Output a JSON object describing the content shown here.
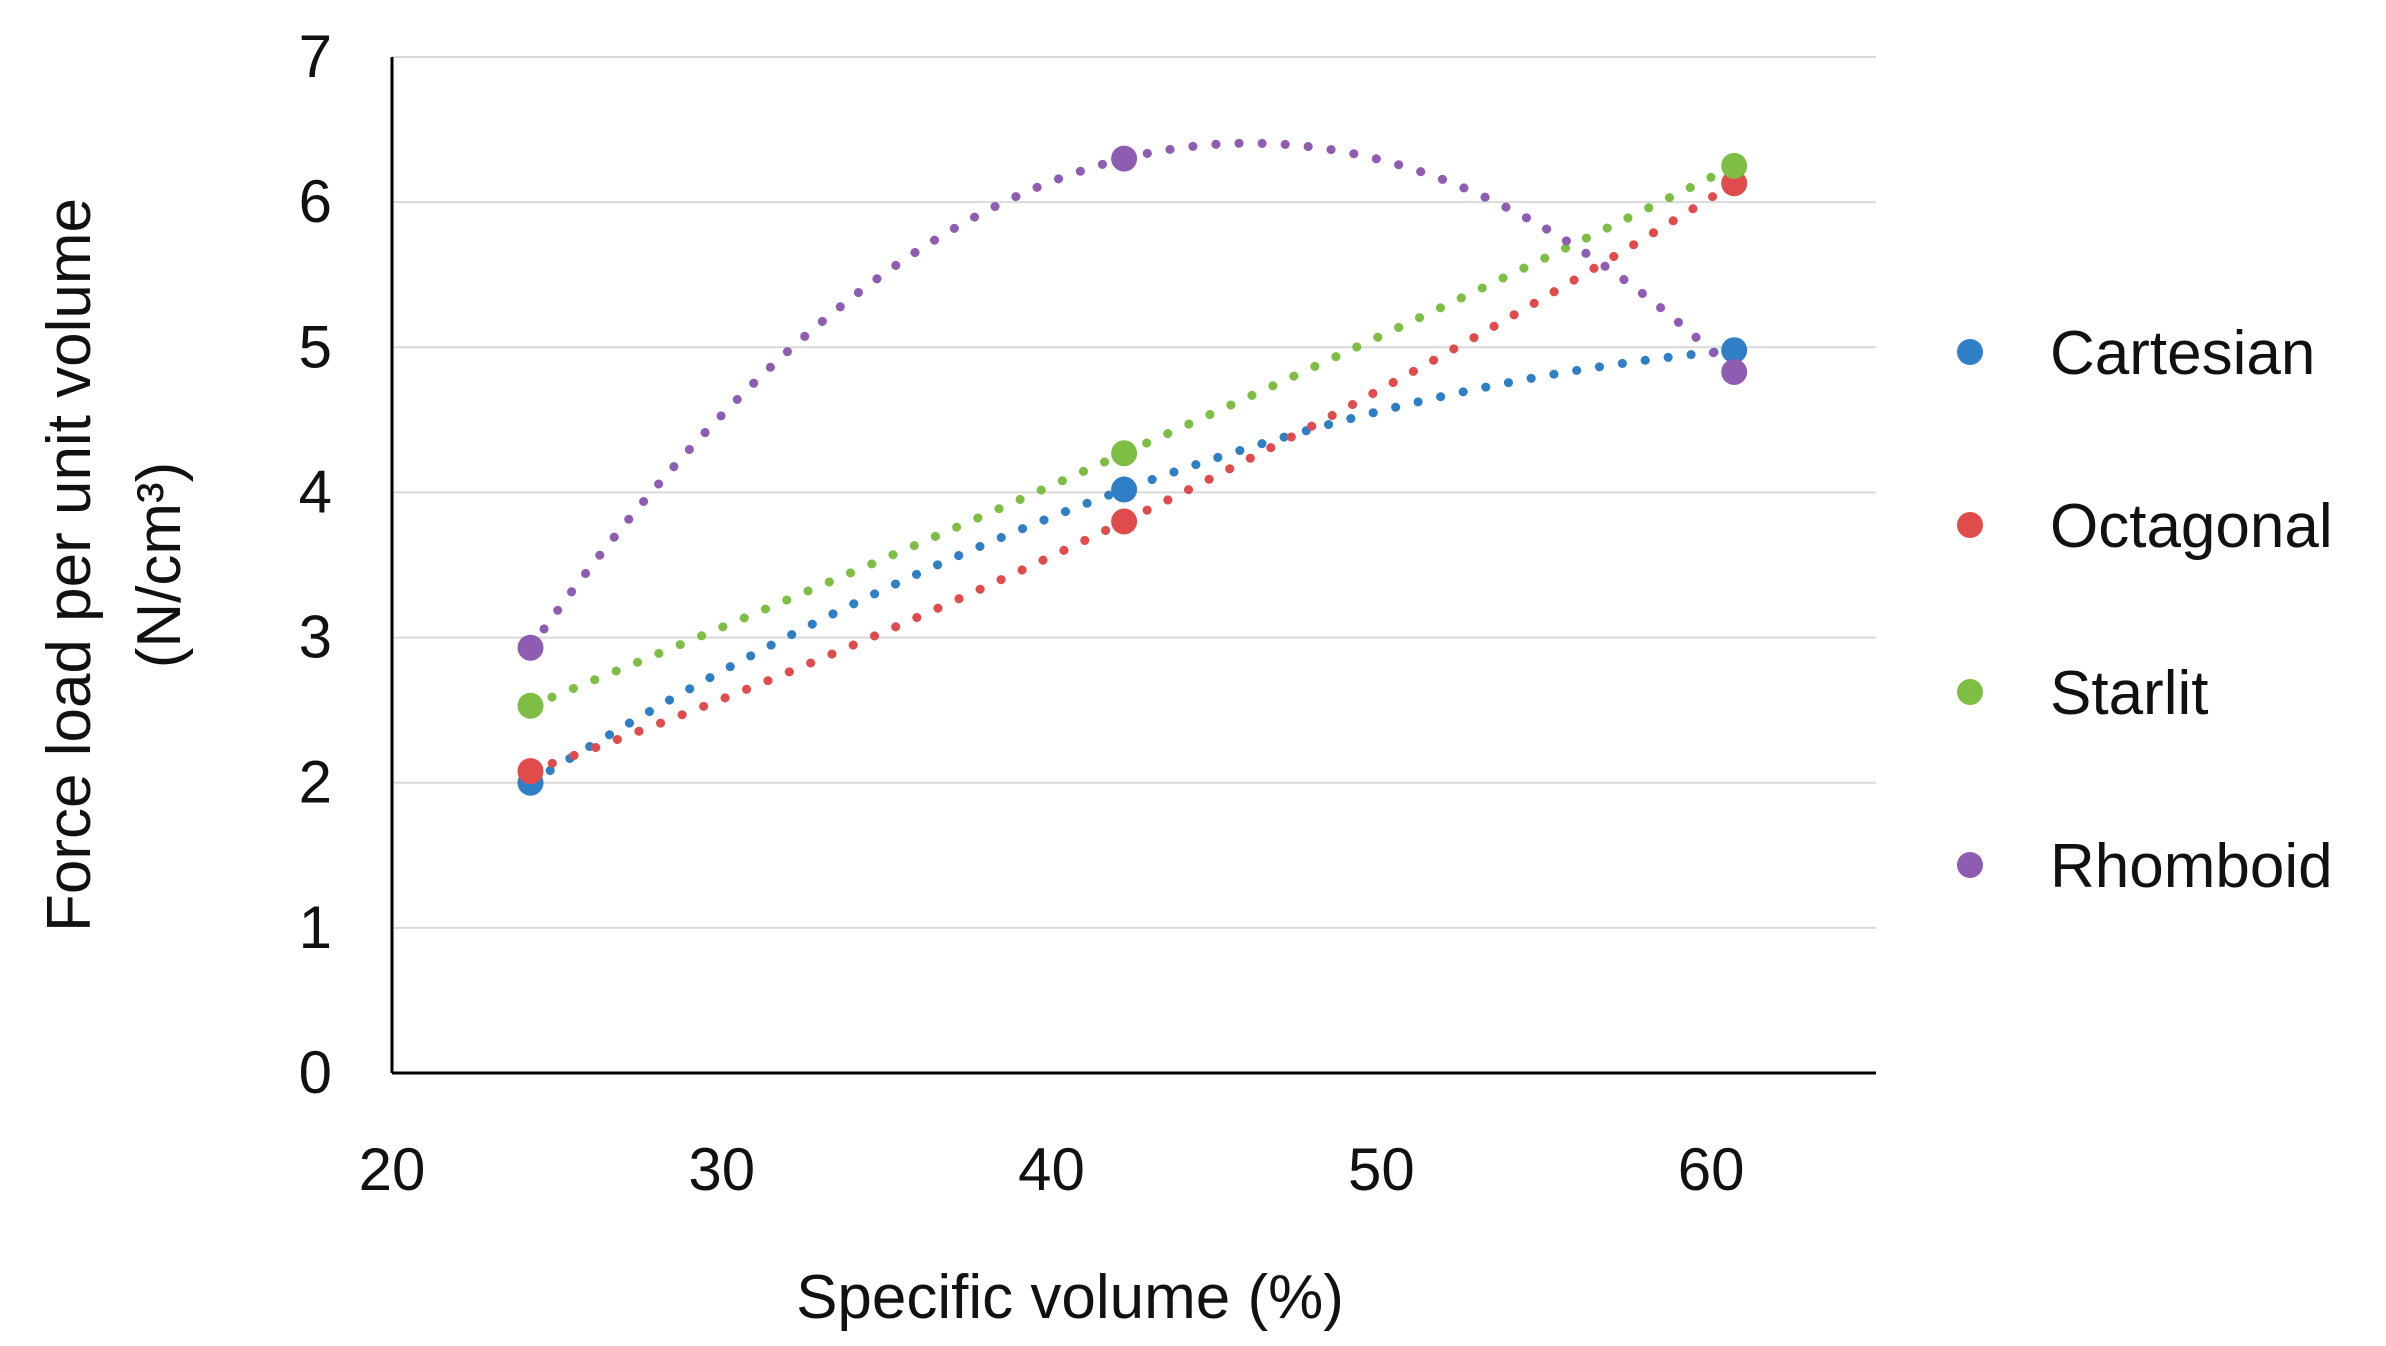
{
  "chart_data": {
    "type": "scatter",
    "title": "",
    "xlabel": "Specific volume (%)",
    "ylabel_line1": "Force load per unit volume",
    "ylabel_line2": "(N/cm³)",
    "xlim": [
      20,
      65
    ],
    "ylim": [
      0,
      7
    ],
    "xticks": [
      20,
      30,
      40,
      50,
      60
    ],
    "yticks": [
      0,
      1,
      2,
      3,
      4,
      5,
      6,
      7
    ],
    "grid": "horizontal",
    "legend_position": "right",
    "trendlines": "dotted polynomial (order 2)",
    "series": [
      {
        "name": "Cartesian",
        "color": "#2E7FC6",
        "x": [
          24.2,
          42.2,
          60.7
        ],
        "y": [
          2.0,
          4.02,
          4.98
        ]
      },
      {
        "name": "Octagonal",
        "color": "#E04B4B",
        "x": [
          24.2,
          42.2,
          60.7
        ],
        "y": [
          2.08,
          3.8,
          6.13
        ]
      },
      {
        "name": "Starlit",
        "color": "#7EBE44",
        "x": [
          24.2,
          42.2,
          60.7
        ],
        "y": [
          2.53,
          4.27,
          6.25
        ]
      },
      {
        "name": "Rhomboid",
        "color": "#8E5CB0",
        "x": [
          24.2,
          42.2,
          60.7
        ],
        "y": [
          2.93,
          6.3,
          4.83
        ]
      }
    ]
  }
}
